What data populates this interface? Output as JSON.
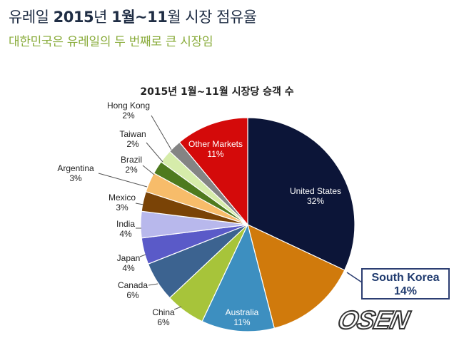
{
  "heading": {
    "text": "유레일 ",
    "year": "2015",
    "nyeon": "년 ",
    "range": "1월~11",
    "rest": "월 시장 점유율"
  },
  "subheading": "대한민국은 유레일의 두 번째로 큰 시장임",
  "watermark": "OSEN",
  "callout": {
    "name": "South Korea",
    "pct": "14%"
  },
  "colors": {
    "United States": "#0c1538",
    "South Korea": "#d07a0c",
    "Australia": "#3d8fc0",
    "China": "#a7c43a",
    "Canada": "#3c6390",
    "Japan": "#5a5ac8",
    "India": "#b8b8ec",
    "Mexico": "#7a4306",
    "Argentina": "#f7bc6a",
    "Brazil": "#4e7a1e",
    "Taiwan": "#d6ecaa",
    "Hong Kong": "#848484",
    "Other Markets": "#d40a0a"
  },
  "chart_data": {
    "type": "pie",
    "title": "2015년 1월~11월 시장당 승객 수",
    "start_angle_deg": 0,
    "direction": "clockwise",
    "slices": [
      {
        "label": "United States",
        "value": 32,
        "display": "32%"
      },
      {
        "label": "South Korea",
        "value": 14,
        "display": "14%"
      },
      {
        "label": "Australia",
        "value": 11,
        "display": "11%"
      },
      {
        "label": "China",
        "value": 6,
        "display": "6%"
      },
      {
        "label": "Canada",
        "value": 6,
        "display": "6%"
      },
      {
        "label": "Japan",
        "value": 4,
        "display": "4%"
      },
      {
        "label": "India",
        "value": 4,
        "display": "4%"
      },
      {
        "label": "Mexico",
        "value": 3,
        "display": "3%"
      },
      {
        "label": "Argentina",
        "value": 3,
        "display": "3%"
      },
      {
        "label": "Brazil",
        "value": 2,
        "display": "2%"
      },
      {
        "label": "Taiwan",
        "value": 2,
        "display": "2%"
      },
      {
        "label": "Hong Kong",
        "value": 2,
        "display": "2%"
      },
      {
        "label": "Other Markets",
        "value": 11,
        "display": "11%"
      }
    ]
  }
}
